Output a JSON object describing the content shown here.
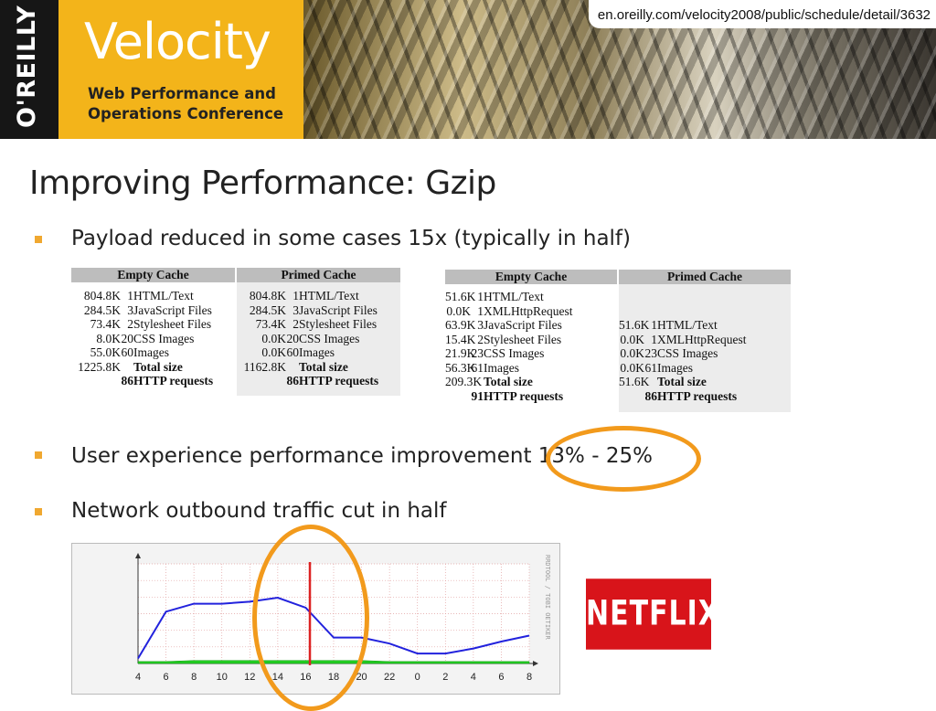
{
  "banner": {
    "publisher": "O'REILLY",
    "title": "Velocity",
    "subtitle_line1": "Web Performance and",
    "subtitle_line2": "Operations Conference",
    "url": "en.oreilly.com/velocity2008/public/schedule/detail/3632"
  },
  "colors": {
    "velocity_yellow": "#f3b41a",
    "bullet": "#f0a830",
    "oval": "#f29a1c",
    "netflix_red": "#d8141a",
    "traffic_line": "#2222dd",
    "baseline_fill": "#22cc22",
    "marker": "#dd2222"
  },
  "slide": {
    "title": "Improving Performance: Gzip",
    "bullets": [
      "Payload reduced in some cases 15x (typically in half)",
      "User experience performance improvement 13% - 25%",
      "Network outbound traffic cut in half"
    ]
  },
  "table1": {
    "headers": [
      "Empty Cache",
      "Primed Cache"
    ],
    "empty": [
      {
        "size": "804.8K",
        "count": "1",
        "label": "HTML/Text"
      },
      {
        "size": "284.5K",
        "count": "3",
        "label": "JavaScript Files"
      },
      {
        "size": "73.4K",
        "count": "2",
        "label": "Stylesheet Files"
      },
      {
        "size": "8.0K",
        "count": "20",
        "label": "CSS Images"
      },
      {
        "size": "55.0K",
        "count": "60",
        "label": "Images"
      },
      {
        "size": "1225.8K",
        "count": "",
        "label": "Total size"
      },
      {
        "size": "",
        "count": "86",
        "label": "HTTP requests"
      }
    ],
    "primed": [
      {
        "size": "804.8K",
        "count": "1",
        "label": "HTML/Text"
      },
      {
        "size": "284.5K",
        "count": "3",
        "label": "JavaScript Files"
      },
      {
        "size": "73.4K",
        "count": "2",
        "label": "Stylesheet Files"
      },
      {
        "size": "0.0K",
        "count": "20",
        "label": "CSS Images"
      },
      {
        "size": "0.0K",
        "count": "60",
        "label": "Images"
      },
      {
        "size": "1162.8K",
        "count": "",
        "label": "Total size"
      },
      {
        "size": "",
        "count": "86",
        "label": "HTTP requests"
      }
    ]
  },
  "table2": {
    "headers": [
      "Empty Cache",
      "Primed Cache"
    ],
    "empty": [
      {
        "size": "51.6K",
        "count": "1",
        "label": "HTML/Text"
      },
      {
        "size": "0.0K",
        "count": "1",
        "label": "XMLHttpRequest"
      },
      {
        "size": "63.9K",
        "count": "3",
        "label": "JavaScript Files"
      },
      {
        "size": "15.4K",
        "count": "2",
        "label": "Stylesheet Files"
      },
      {
        "size": "21.9K",
        "count": "23",
        "label": "CSS Images"
      },
      {
        "size": "56.3K",
        "count": "61",
        "label": "Images"
      },
      {
        "size": "209.3K",
        "count": "",
        "label": "Total size"
      },
      {
        "size": "",
        "count": "91",
        "label": "HTTP requests"
      }
    ],
    "primed": [
      {
        "size": "51.6K",
        "count": "1",
        "label": "HTML/Text"
      },
      {
        "size": "0.0K",
        "count": "1",
        "label": "XMLHttpRequest"
      },
      {
        "size": "0.0K",
        "count": "23",
        "label": "CSS Images"
      },
      {
        "size": "0.0K",
        "count": "61",
        "label": "Images"
      },
      {
        "size": "51.6K",
        "count": "",
        "label": "Total size"
      },
      {
        "size": "",
        "count": "86",
        "label": "HTTP requests"
      }
    ]
  },
  "chart_data": {
    "type": "line",
    "x": [
      "4",
      "6",
      "8",
      "10",
      "12",
      "14",
      "16",
      "18",
      "20",
      "22",
      "0",
      "2",
      "4",
      "6",
      "8"
    ],
    "series": [
      {
        "values": [
          0.05,
          0.52,
          0.6,
          0.6,
          0.62,
          0.66,
          0.56,
          0.26,
          0.26,
          0.2,
          0.1,
          0.1,
          0.15,
          0.22,
          0.28
        ]
      },
      {
        "values": [
          0.02,
          0.02,
          0.03,
          0.03,
          0.03,
          0.03,
          0.03,
          0.03,
          0.03,
          0.02,
          0.02,
          0.02,
          0.02,
          0.02,
          0.02
        ]
      }
    ],
    "ylim": [
      0,
      1
    ],
    "marker_x": "16",
    "side_label": "RRDTOOL / TOBI OETIKER",
    "grid": true
  },
  "logo": {
    "netflix": "NETFLIX"
  }
}
